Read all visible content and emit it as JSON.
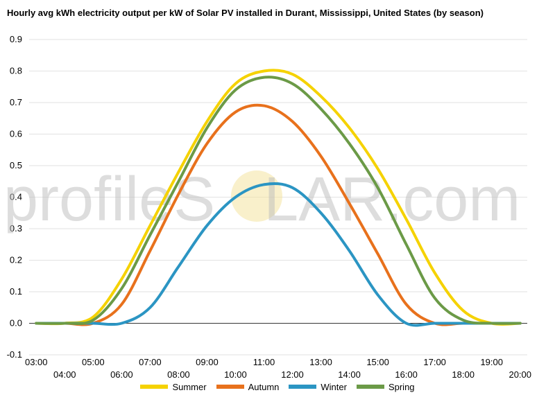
{
  "chart_data": {
    "type": "line",
    "title": "Hourly avg kWh electricity output per kW of Solar PV installed in Durant, Mississippi, United States (by season)",
    "watermark": "profileSOLAR.com",
    "xlabel": "",
    "ylabel": "",
    "ylim": [
      -0.1,
      0.9
    ],
    "yticks": [
      "0.9",
      "0.8",
      "0.7",
      "0.6",
      "0.5",
      "0.4",
      "0.3",
      "0.2",
      "0.1",
      "0.0",
      "-0.1"
    ],
    "xtick_labels": [
      "03:00",
      "04:00",
      "05:00",
      "06:00",
      "07:00",
      "08:00",
      "09:00",
      "10:00",
      "11:00",
      "12:00",
      "13:00",
      "14:00",
      "15:00",
      "16:00",
      "17:00",
      "18:00",
      "19:00",
      "20:00"
    ],
    "x": [
      3,
      4,
      5,
      6,
      7,
      8,
      9,
      10,
      11,
      12,
      13,
      14,
      15,
      16,
      17,
      18,
      19,
      20
    ],
    "grid": true,
    "legend_position": "bottom",
    "series": [
      {
        "name": "Summer",
        "color": "#f5d200",
        "values": [
          0.0,
          0.0,
          0.02,
          0.14,
          0.31,
          0.48,
          0.64,
          0.76,
          0.8,
          0.79,
          0.72,
          0.62,
          0.49,
          0.33,
          0.16,
          0.04,
          0.0,
          0.0
        ]
      },
      {
        "name": "Autumn",
        "color": "#e8711c",
        "values": [
          0.0,
          0.0,
          0.0,
          0.06,
          0.23,
          0.41,
          0.57,
          0.67,
          0.69,
          0.64,
          0.53,
          0.38,
          0.22,
          0.06,
          0.0,
          0.0,
          0.0,
          0.0
        ]
      },
      {
        "name": "Winter",
        "color": "#2b95c3",
        "values": [
          0.0,
          0.0,
          0.0,
          0.0,
          0.05,
          0.18,
          0.31,
          0.4,
          0.44,
          0.43,
          0.35,
          0.23,
          0.09,
          0.0,
          0.0,
          0.0,
          0.0,
          0.0
        ]
      },
      {
        "name": "Spring",
        "color": "#6b9a47",
        "values": [
          0.0,
          0.0,
          0.01,
          0.11,
          0.28,
          0.45,
          0.62,
          0.74,
          0.78,
          0.76,
          0.68,
          0.57,
          0.43,
          0.25,
          0.08,
          0.01,
          0.0,
          0.0
        ]
      }
    ]
  }
}
